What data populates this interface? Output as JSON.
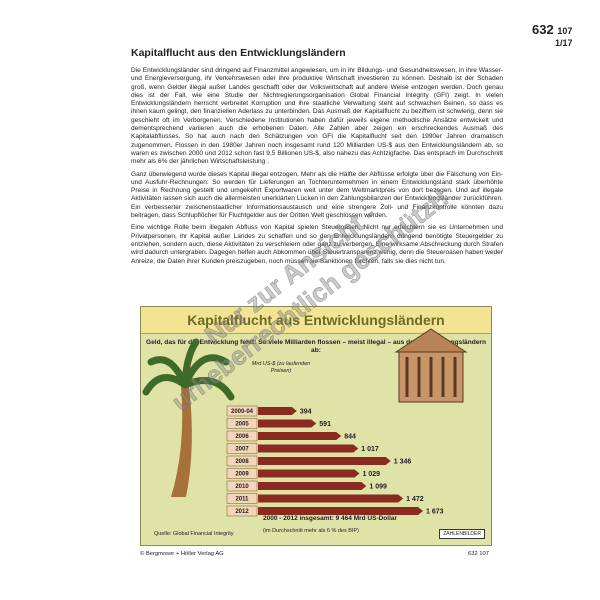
{
  "header": {
    "number": "632",
    "number_suffix": "107",
    "page": "1/17"
  },
  "title": "Kapitalflucht aus den Entwicklungsländern",
  "paragraphs": [
    "Die Entwicklungsländer sind dringend auf Finanzmittel angewiesen, um in ihr Bildungs- und Gesundheitswesen, in ihre Wasser- und Energieversorgung, ihr Verkehrswesen oder ihre produktive Wirtschaft investieren zu können. Deshalb ist der Schaden groß, wenn Gelder illegal außer Landes geschafft oder der Volkswirtschaft auf andere Weise entzogen werden. Doch genau dies ist der Fall, wie eine Studie der Nichtregierungsorganisation Global Financial Integrity (GFI) zeigt. In vielen Entwicklungsländern herrscht verbreitet Korruption und ihre staatliche Verwaltung steht auf schwachen Beinen, so dass es ihnen kaum gelingt, den finanziellen Aderlass zu unterbinden. Das Ausmaß der Kapitalflucht zu beziffern ist schwierig, denn sie geschieht oft im Verborgenen. Verschiedene Institutionen haben dafür jeweils eigene methodische Ansätze entwickelt und dementsprechend variieren auch die erhobenen Daten. Alle Zahlen aber zeigen ein erschreckendes Ausmaß des Kapitalabflusses. So hat auch nach den Schätzungen von GFI die Kapitalflucht seit den 1990er Jahren dramatisch zugenommen. Flossen in den 1980er Jahren noch insgesamt rund 120 Milliarden US-$ aus den Entwicklungsländern ab, so waren es zwischen 2000 und 2012 schon fast 9,5 Billionen US-$, also nahezu das Achtzigfache. Das entsprach im Durchschnitt mehr als 6% der jährlichen Wirtschaftsleistung .",
    "Ganz überwiegend wurde dieses Kapital illegal entzogen. Mehr als die Hälfte der Abflüsse erfolgte über die Fälschung von Ein- und Ausfuhr-Rechnungen: So werden für Lieferungen an Tochterunternehmen in einem Entwicklungsland stark überhöhte Preise in Rechnung gestellt und umgekehrt Exportwaren weit unter dem Weltmarktpreis von dort bezogen. Und auf illegale Aktivitäten lassen sich auch die allermeisten unerklärten Lücken in den Zahlungsbilanzen der Entwicklungsländer zurückführen. Ein verbesserter zwischenstaatlicher Informationsaustausch und eine strengere Zoll- und Finanzkontrolle könnten dazu beitragen, dass Schlupflöcher für Fluchtgelder aus der Dritten Welt geschlossen werden.",
    "Eine wichtige Rolle beim illegalen Abfluss von Kapital spielen Steueroasen. Nicht nur erleichtern sie es Unternehmen und Privatpersonen, ihr Kapital außer Landes zu schaffen und so den Entwicklungsländern dringend benötigte Steuergelder zu entziehen, sondern auch, diese Aktivitäten zu verschleiern oder ganz zu verbergen. Eine wirksame Abschreckung durch Strafen wird dadurch untergraben. Dagegen helfen auch Abkommen über Steuertransparenz wenig, denn die Steueroasen haben weder Anreize, die Daten ihrer Kunden preiszugeben, noch müssen sie Sanktionen fürchten, falls sie dies nicht tun."
  ],
  "chart_data": {
    "type": "bar",
    "title": "Kapitalflucht aus Entwicklungsländern",
    "subtitle": "Geld, das für die Entwicklung fehlt: So viele Milliarden flossen – meist illegal – aus den Entwicklungsländern ab:",
    "unit_label": "Mrd US-$ (zu laufenden Preisen)",
    "categories": [
      "2000-04",
      "2005",
      "2006",
      "2007",
      "2008",
      "2009",
      "2010",
      "2011",
      "2012"
    ],
    "values": [
      394,
      591,
      844,
      1017,
      1346,
      1029,
      1099,
      1472,
      1673
    ],
    "value_labels": [
      "394",
      "591",
      "844",
      "1 017",
      "1 346",
      "1 029",
      "1 099",
      "1 472",
      "1 673"
    ],
    "total": "2000 - 2012 insgesamt: 9 464 Mrd US-Dollar",
    "total_note": "(im Durchschnitt mehr als 6 % des BIP)",
    "source": "Quelle: Global Financial Integrity",
    "brand": "ZAHLENBILDER",
    "orientation": "horizontal",
    "colors": {
      "bar": "#8b2a1e",
      "label_box": "#f3d6b8",
      "header": "#f3e493",
      "background": "#dfe3a8"
    }
  },
  "footer": {
    "copyright": "© Bergmoser + Höller Verlag AG",
    "code": "632 107"
  },
  "watermark": "Nur zur Ansicht - urheberrechtlich geschützt!"
}
